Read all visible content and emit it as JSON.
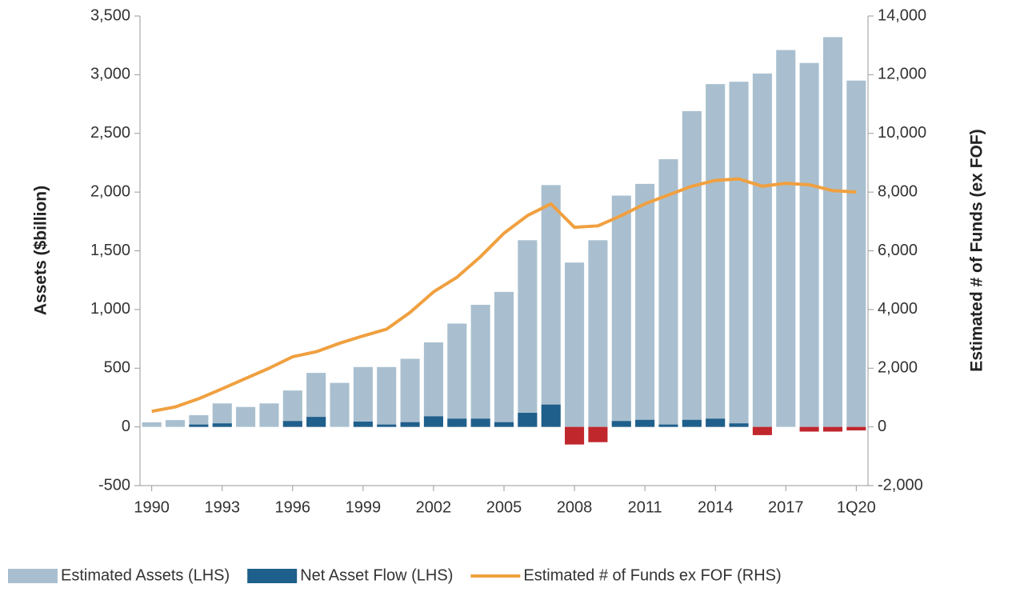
{
  "chart_data": {
    "type": "bar",
    "categories": [
      "1990",
      null,
      null,
      "1993",
      null,
      null,
      "1996",
      null,
      null,
      "1999",
      null,
      null,
      "2002",
      null,
      null,
      "2005",
      null,
      null,
      "2008",
      null,
      null,
      "2011",
      null,
      null,
      "2014",
      null,
      null,
      "2017",
      null,
      null,
      "1Q20"
    ],
    "series": [
      {
        "name": "Estimated Assets (LHS)",
        "color": "#a9bfcf",
        "values": [
          39,
          58,
          100,
          200,
          170,
          200,
          310,
          460,
          375,
          510,
          510,
          580,
          720,
          880,
          1040,
          1150,
          1590,
          2060,
          1400,
          1590,
          1970,
          2070,
          2280,
          2690,
          2920,
          2940,
          3010,
          3210,
          3100,
          3320,
          2950
        ]
      },
      {
        "name": "Net Asset Flow (LHS)",
        "color": "#1f5f8b",
        "negative_color": "#c0272d",
        "values": [
          0,
          0,
          20,
          30,
          0,
          0,
          50,
          85,
          0,
          45,
          20,
          40,
          90,
          70,
          70,
          40,
          120,
          190,
          -150,
          -130,
          50,
          60,
          20,
          60,
          70,
          30,
          -70,
          0,
          -40,
          -40,
          -30
        ]
      },
      {
        "name": "Estimated # of Funds ex FOF (RHS)",
        "color": "#f0a040",
        "type": "line",
        "axis": "y2",
        "values": [
          530,
          680,
          960,
          1300,
          1650,
          2000,
          2390,
          2560,
          2850,
          3100,
          3330,
          3900,
          4600,
          5100,
          5800,
          6600,
          7200,
          7600,
          6800,
          6850,
          7200,
          7600,
          7900,
          8200,
          8400,
          8450,
          8200,
          8300,
          8250,
          8050,
          8000
        ]
      }
    ],
    "ylabel": "Assets ($billion)",
    "y2label": "Estimated # of Funds (ex FOF)",
    "ylim": [
      -500,
      3500
    ],
    "yticks": [
      -500,
      0,
      500,
      {
        "value": 1000,
        "label": "1,000"
      },
      {
        "value": 1500,
        "label": "1,500"
      },
      {
        "value": 2000,
        "label": "2,000"
      },
      {
        "value": 2500,
        "label": "2,500"
      },
      {
        "value": 3000,
        "label": "3,000"
      },
      {
        "value": 3500,
        "label": "3,500"
      }
    ],
    "y2lim": [
      -2000,
      14000
    ],
    "y2ticks": [
      {
        "value": -2000,
        "label": "-2,000"
      },
      0,
      {
        "value": 2000,
        "label": "2,000"
      },
      {
        "value": 4000,
        "label": "4,000"
      },
      {
        "value": 6000,
        "label": "6,000"
      },
      {
        "value": 8000,
        "label": "8,000"
      },
      {
        "value": 10000,
        "label": "10,000"
      },
      {
        "value": 12000,
        "label": "12,000"
      },
      {
        "value": 14000,
        "label": "14,000"
      }
    ],
    "legend": "bottom"
  }
}
